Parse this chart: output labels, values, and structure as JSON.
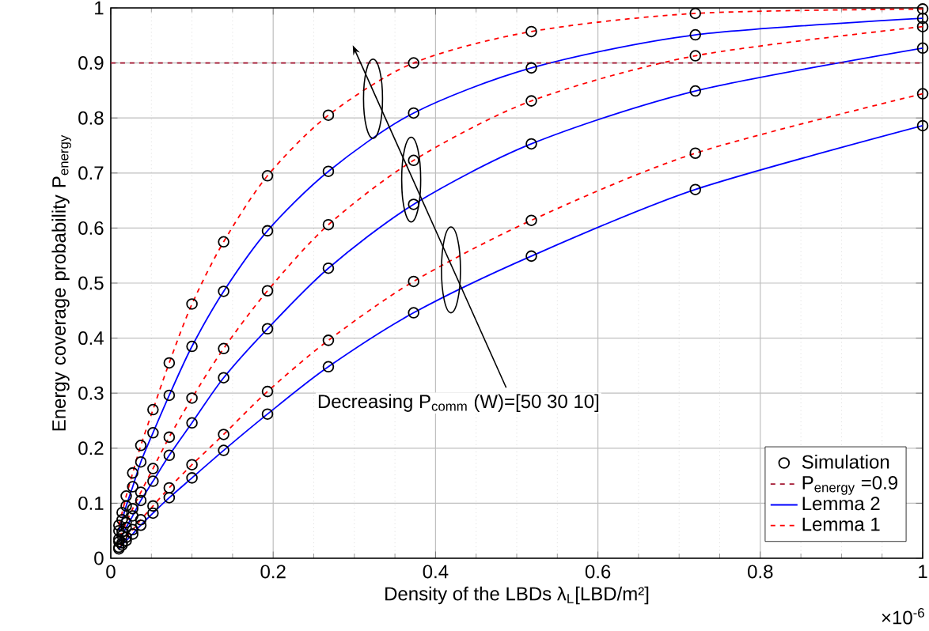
{
  "chart_data": {
    "type": "line",
    "xlabel": "Density of the LBDs  λ$_{L}$[LBD/m²]",
    "ylabel": "Energy coverage probability P$_{energy}$",
    "annotations": [
      "Decreasing P$_{comm}$ (W)=[50 30 10]",
      "×10$^{-6}$"
    ],
    "xlim": [
      0,
      1
    ],
    "ylim": [
      0,
      1
    ],
    "xticks": [
      0,
      0.2,
      0.4,
      0.6,
      0.8,
      1
    ],
    "yticks": [
      0,
      0.1,
      0.2,
      0.3,
      0.4,
      0.5,
      0.6,
      0.7,
      0.8,
      0.9,
      1
    ],
    "grid": true,
    "legend": "bottom right",
    "ref_lines": [
      {
        "axis": "y",
        "value": 0.9,
        "label": "P$_{energy}$ =0.9",
        "color": "#a2142f",
        "line_style": "dashed"
      }
    ],
    "series": [
      {
        "name": "Simulation",
        "type": "scatter",
        "marker": "circle",
        "color": "#000000",
        "x": [
          1,
          0.72,
          0.518,
          0.373,
          0.268,
          0.193,
          0.139,
          0.1,
          0.072,
          0.052,
          0.037,
          0.027,
          0.019,
          0.014,
          0.01,
          1,
          0.72,
          0.518,
          0.373,
          0.268,
          0.193,
          0.139,
          0.1,
          0.072,
          0.052,
          0.037,
          0.027,
          0.019,
          0.014,
          0.01,
          1,
          0.72,
          0.518,
          0.373,
          0.268,
          0.193,
          0.139,
          0.1,
          0.072,
          0.052,
          0.037,
          0.027,
          0.019,
          0.014,
          0.01,
          1,
          0.72,
          0.518,
          0.373,
          0.268,
          0.193,
          0.139,
          0.1,
          0.072,
          0.052,
          0.037,
          0.027,
          0.019,
          0.014,
          0.01,
          1,
          0.72,
          0.518,
          0.373,
          0.268,
          0.193,
          0.139,
          0.1,
          0.072,
          0.052,
          0.037,
          0.027,
          0.019,
          0.014,
          0.01,
          1,
          0.72,
          0.518,
          0.373,
          0.268,
          0.193,
          0.139,
          0.1,
          0.072,
          0.052,
          0.037,
          0.027,
          0.019,
          0.014,
          0.01
        ],
        "values": [
          0.998,
          0.99,
          0.957,
          0.9,
          0.805,
          0.695,
          0.575,
          0.462,
          0.355,
          0.27,
          0.205,
          0.155,
          0.113,
          0.083,
          0.06,
          0.981,
          0.951,
          0.891,
          0.809,
          0.703,
          0.595,
          0.485,
          0.385,
          0.296,
          0.228,
          0.175,
          0.13,
          0.095,
          0.07,
          0.05,
          0.966,
          0.913,
          0.831,
          0.723,
          0.606,
          0.486,
          0.381,
          0.291,
          0.22,
          0.163,
          0.12,
          0.09,
          0.065,
          0.048,
          0.035,
          0.927,
          0.849,
          0.753,
          0.643,
          0.527,
          0.417,
          0.328,
          0.246,
          0.187,
          0.14,
          0.105,
          0.077,
          0.056,
          0.041,
          0.03,
          0.844,
          0.736,
          0.614,
          0.503,
          0.396,
          0.303,
          0.225,
          0.17,
          0.128,
          0.095,
          0.07,
          0.052,
          0.038,
          0.028,
          0.02,
          0.786,
          0.67,
          0.549,
          0.446,
          0.348,
          0.262,
          0.196,
          0.146,
          0.11,
          0.082,
          0.06,
          0.044,
          0.032,
          0.024,
          0.017
        ]
      },
      {
        "name": "Lemma 2",
        "marker": "none",
        "line_style": "solid",
        "color": "#0000ff",
        "x": [
          1,
          0.72,
          0.518,
          0.373,
          0.268,
          0.193,
          0.139,
          0.1,
          0.072,
          0.052,
          0.037,
          0.027,
          0.019,
          0.014,
          0.01
        ],
        "values": [
          0.981,
          0.951,
          0.891,
          0.809,
          0.703,
          0.595,
          0.485,
          0.385,
          0.296,
          0.228,
          0.175,
          0.13,
          0.095,
          0.07,
          0.05
        ]
      },
      {
        "type": "line",
        "marker": "none",
        "line_style": "solid",
        "color": "#0000ff",
        "x": [
          1,
          0.72,
          0.518,
          0.373,
          0.268,
          0.193,
          0.139,
          0.1,
          0.072,
          0.052,
          0.037,
          0.027,
          0.019,
          0.014,
          0.01
        ],
        "values": [
          0.927,
          0.849,
          0.753,
          0.643,
          0.527,
          0.417,
          0.328,
          0.246,
          0.187,
          0.14,
          0.105,
          0.077,
          0.056,
          0.041,
          0.03
        ]
      },
      {
        "type": "line",
        "marker": "none",
        "line_style": "solid",
        "color": "#0000ff",
        "x": [
          1,
          0.72,
          0.518,
          0.373,
          0.268,
          0.193,
          0.139,
          0.1,
          0.072,
          0.052,
          0.037,
          0.027,
          0.019,
          0.014,
          0.01
        ],
        "values": [
          0.786,
          0.67,
          0.549,
          0.446,
          0.348,
          0.262,
          0.196,
          0.146,
          0.11,
          0.082,
          0.06,
          0.044,
          0.032,
          0.024,
          0.017
        ]
      },
      {
        "name": "Lemma 1",
        "marker": "none",
        "line_style": "dashed",
        "color": "#ff0000",
        "x": [
          1,
          0.72,
          0.518,
          0.373,
          0.268,
          0.193,
          0.139,
          0.1,
          0.072,
          0.052,
          0.037,
          0.027,
          0.019,
          0.014,
          0.01
        ],
        "values": [
          0.998,
          0.99,
          0.957,
          0.9,
          0.805,
          0.695,
          0.575,
          0.462,
          0.355,
          0.27,
          0.205,
          0.155,
          0.113,
          0.083,
          0.06
        ]
      },
      {
        "type": "line",
        "marker": "none",
        "line_style": "dashed",
        "color": "#ff0000",
        "x": [
          1,
          0.72,
          0.518,
          0.373,
          0.268,
          0.193,
          0.139,
          0.1,
          0.072,
          0.052,
          0.037,
          0.027,
          0.019,
          0.014,
          0.01
        ],
        "values": [
          0.966,
          0.913,
          0.831,
          0.723,
          0.606,
          0.486,
          0.381,
          0.291,
          0.22,
          0.163,
          0.12,
          0.09,
          0.065,
          0.048,
          0.035
        ]
      },
      {
        "type": "line",
        "marker": "none",
        "line_style": "dashed",
        "color": "#ff0000",
        "x": [
          1,
          0.72,
          0.518,
          0.373,
          0.268,
          0.193,
          0.139,
          0.1,
          0.072,
          0.052,
          0.037,
          0.027,
          0.019,
          0.014,
          0.01
        ],
        "values": [
          0.844,
          0.736,
          0.614,
          0.503,
          0.396,
          0.303,
          0.225,
          0.17,
          0.128,
          0.095,
          0.07,
          0.052,
          0.038,
          0.028,
          0.02
        ]
      }
    ]
  }
}
